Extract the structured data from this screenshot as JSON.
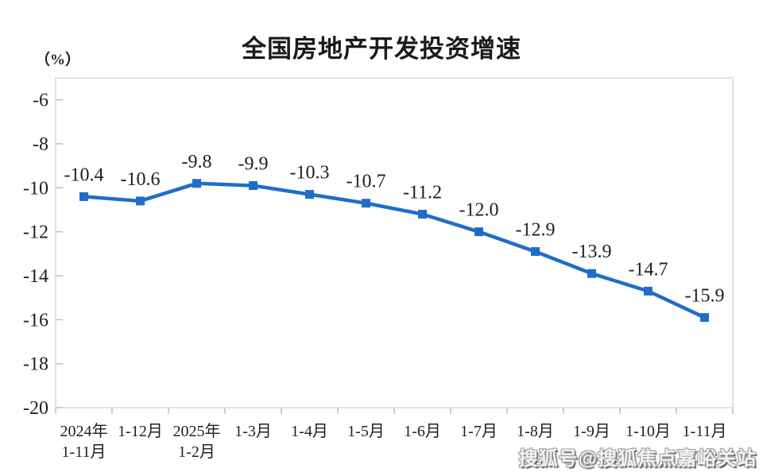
{
  "page": {
    "background": "#ffffff"
  },
  "chart": {
    "title": "全国房地产开发投资增速",
    "unit_label": "（%）"
  },
  "chart_data": {
    "type": "line",
    "title": "全国房地产开发投资增速",
    "ylabel": "（%）",
    "xlabel": "",
    "categories": [
      "2024年\n1-11月",
      "1-12月",
      "2025年\n1-2月",
      "1-3月",
      "1-4月",
      "1-5月",
      "1-6月",
      "1-7月",
      "1-8月",
      "1-9月",
      "1-10月",
      "1-11月"
    ],
    "series": [
      {
        "name": "全国房地产开发投资增速",
        "values": [
          -10.4,
          -10.6,
          -9.8,
          -9.9,
          -10.3,
          -10.7,
          -11.2,
          -12.0,
          -12.9,
          -13.9,
          -14.7,
          -15.9
        ],
        "labels": [
          "-10.4",
          "-10.6",
          "-9.8",
          "-9.9",
          "-10.3",
          "-10.7",
          "-11.2",
          "-12.0",
          "-12.9",
          "-13.9",
          "-14.7",
          "-15.9"
        ]
      }
    ],
    "ylim": [
      -20,
      -5
    ],
    "yticks": [
      -6,
      -8,
      -10,
      -12,
      -14,
      -16,
      -18,
      -20
    ],
    "grid": false,
    "legend": "none",
    "marker": "square",
    "colors": {
      "line": "#1e6ec8",
      "frame": "#d9d9d9",
      "tick": "#bfbfbf",
      "text": "#1f1f1f"
    }
  },
  "watermark": {
    "text": "搜狐号@搜狐焦点嘉峪关站"
  }
}
